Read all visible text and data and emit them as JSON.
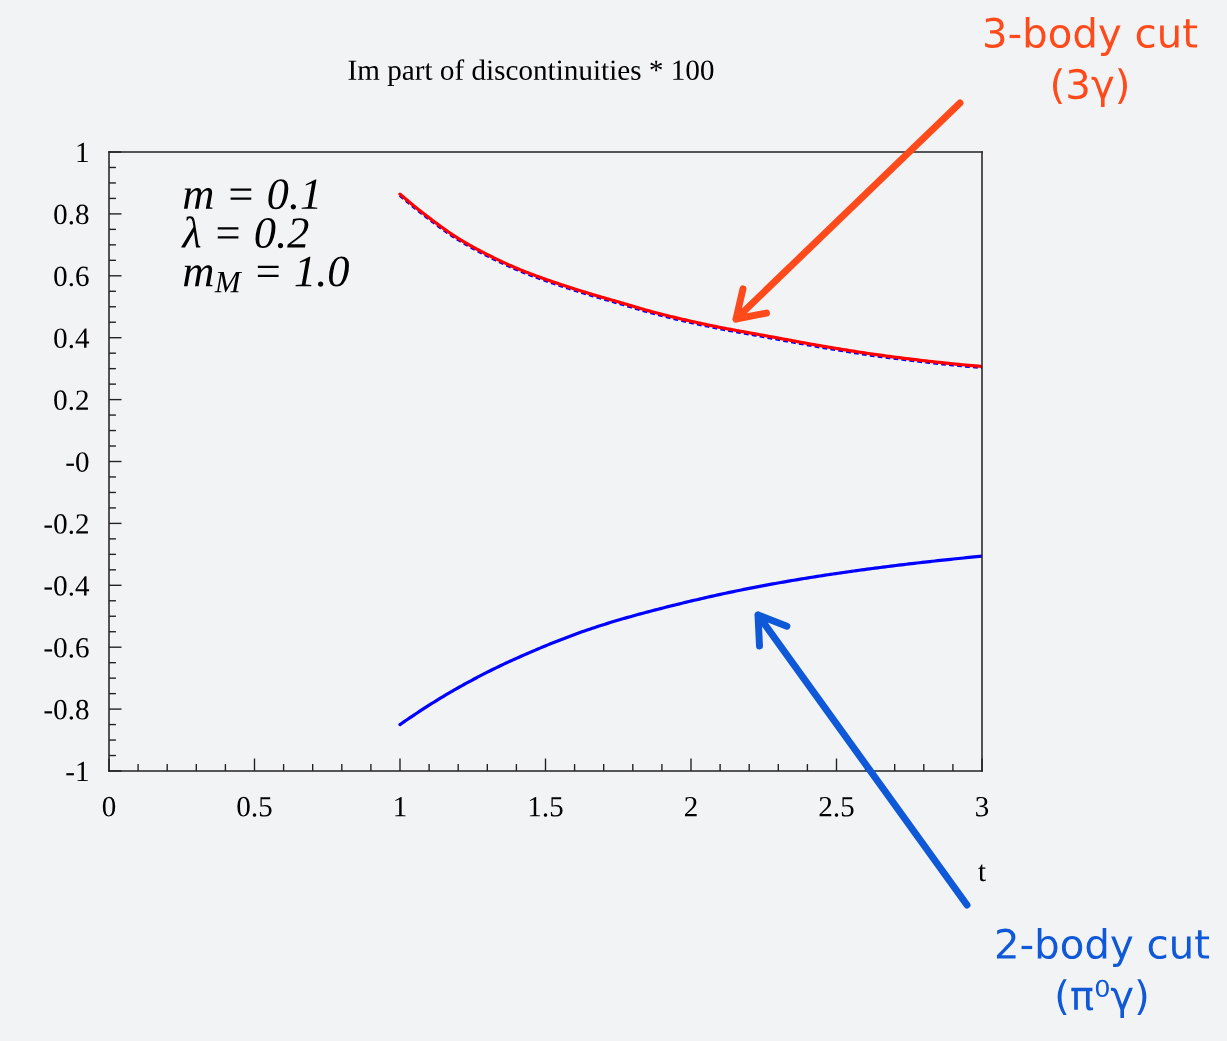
{
  "chart_data": {
    "type": "line",
    "title": "Im part of discontinuities * 100",
    "xlabel": "t",
    "annotations": [
      "m = 0.1\nλ = 0.2\nm$_{M}$ = 1.0",
      "3-body cut\n(3γ)",
      "2-body cut\n(π⁰γ)"
    ],
    "series": [
      {
        "color": "#0000ff",
        "line_style": "dotted",
        "x": [
          1.0,
          1.08,
          1.2,
          1.31,
          1.42,
          1.54,
          1.65,
          1.76,
          1.87,
          2.07,
          2.27,
          2.47,
          2.67,
          3.0
        ],
        "values": [
          0.86,
          0.798,
          0.717,
          0.66,
          0.613,
          0.572,
          0.539,
          0.509,
          0.479,
          0.435,
          0.4,
          0.366,
          0.337,
          0.304
        ]
      },
      {
        "color": "#ff0000",
        "line_style": "solid",
        "x": [
          1.0,
          1.08,
          1.2,
          1.31,
          1.42,
          1.54,
          1.65,
          1.76,
          1.87,
          2.07,
          2.27,
          2.47,
          2.67,
          3.0
        ],
        "values": [
          0.864,
          0.802,
          0.721,
          0.664,
          0.617,
          0.576,
          0.543,
          0.513,
          0.483,
          0.439,
          0.404,
          0.37,
          0.341,
          0.307
        ]
      },
      {
        "color": "#0000ff",
        "line_style": "solid",
        "x": [
          1.0,
          1.2,
          1.4,
          1.67,
          1.93,
          2.2,
          2.47,
          2.74,
          3.0
        ],
        "values": [
          -0.85,
          -0.731,
          -0.636,
          -0.536,
          -0.467,
          -0.41,
          -0.366,
          -0.332,
          -0.306
        ]
      }
    ],
    "xlim": [
      0,
      3
    ],
    "ylim": [
      -1,
      1
    ],
    "xticks": [
      0,
      {
        "value": 0.1,
        "label": null
      },
      {
        "value": 0.2,
        "label": null
      },
      {
        "value": 0.3,
        "label": null
      },
      {
        "value": 0.4,
        "label": null
      },
      0.5,
      {
        "value": 0.6,
        "label": null
      },
      {
        "value": 0.7,
        "label": null
      },
      {
        "value": 0.8,
        "label": null
      },
      {
        "value": 0.9,
        "label": null
      },
      1,
      {
        "value": 1.1,
        "label": null
      },
      {
        "value": 1.2,
        "label": null
      },
      {
        "value": 1.3,
        "label": null
      },
      {
        "value": 1.4,
        "label": null
      },
      1.5,
      {
        "value": 1.6,
        "label": null
      },
      {
        "value": 1.7,
        "label": null
      },
      {
        "value": 1.8,
        "label": null
      },
      {
        "value": 1.9,
        "label": null
      },
      2,
      {
        "value": 2.1,
        "label": null
      },
      {
        "value": 2.2,
        "label": null
      },
      {
        "value": 2.3,
        "label": null
      },
      {
        "value": 2.4,
        "label": null
      },
      2.5,
      {
        "value": 2.6,
        "label": null
      },
      {
        "value": 2.7,
        "label": null
      },
      {
        "value": 2.8,
        "label": null
      },
      {
        "value": 2.9,
        "label": null
      },
      3
    ],
    "yticks": [
      -1,
      {
        "value": -0.95,
        "label": null
      },
      {
        "value": -0.9,
        "label": null
      },
      {
        "value": -0.85,
        "label": null
      },
      -0.8,
      {
        "value": -0.75,
        "label": null
      },
      {
        "value": -0.7,
        "label": null
      },
      {
        "value": -0.65,
        "label": null
      },
      -0.6,
      {
        "value": -0.55,
        "label": null
      },
      {
        "value": -0.5,
        "label": null
      },
      {
        "value": -0.45,
        "label": null
      },
      -0.4,
      {
        "value": -0.35,
        "label": null
      },
      {
        "value": -0.3,
        "label": null
      },
      {
        "value": -0.25,
        "label": null
      },
      -0.2,
      {
        "value": -0.15,
        "label": null
      },
      {
        "value": -0.1,
        "label": null
      },
      {
        "value": -0.05,
        "label": null
      },
      {
        "value": 0,
        "label": "-0"
      },
      {
        "value": 0.05,
        "label": null
      },
      {
        "value": 0.1,
        "label": null
      },
      {
        "value": 0.15,
        "label": null
      },
      0.2,
      {
        "value": 0.25,
        "label": null
      },
      {
        "value": 0.3,
        "label": null
      },
      {
        "value": 0.35,
        "label": null
      },
      0.4,
      {
        "value": 0.45,
        "label": null
      },
      {
        "value": 0.5,
        "label": null
      },
      {
        "value": 0.55,
        "label": null
      },
      0.6,
      {
        "value": 0.65,
        "label": null
      },
      {
        "value": 0.7,
        "label": null
      },
      {
        "value": 0.75,
        "label": null
      },
      0.8,
      {
        "value": 0.85,
        "label": null
      },
      {
        "value": 0.9,
        "label": null
      },
      {
        "value": 0.95,
        "label": null
      },
      1
    ],
    "grid": false
  }
}
